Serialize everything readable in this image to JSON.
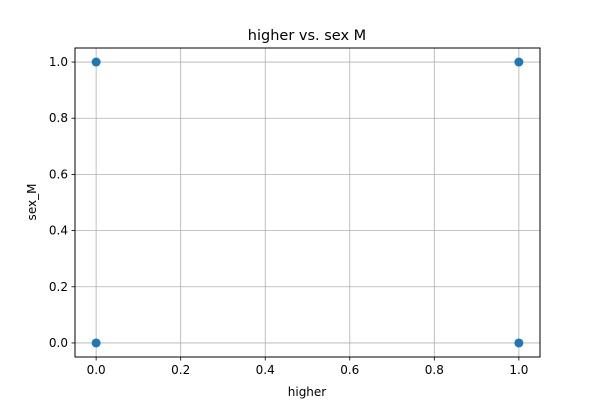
{
  "chart_data": {
    "type": "scatter",
    "title": "higher vs. sex M",
    "xlabel": "higher",
    "ylabel": "sex_M",
    "xlim": [
      -0.05,
      1.05
    ],
    "ylim": [
      -0.05,
      1.05
    ],
    "xticks": [
      "0.0",
      "0.2",
      "0.4",
      "0.6",
      "0.8",
      "1.0"
    ],
    "yticks": [
      "0.0",
      "0.2",
      "0.4",
      "0.6",
      "0.8",
      "1.0"
    ],
    "grid": true,
    "points": [
      {
        "x": 0,
        "y": 0
      },
      {
        "x": 0,
        "y": 1
      },
      {
        "x": 1,
        "y": 0
      },
      {
        "x": 1,
        "y": 1
      }
    ],
    "colors": {
      "marker": "#1f77b4",
      "grid": "#b0b0b0",
      "axes": "#000000"
    }
  }
}
